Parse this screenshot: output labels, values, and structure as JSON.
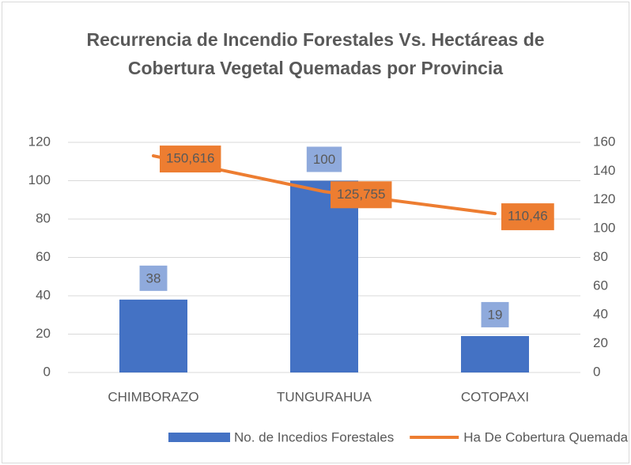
{
  "chart_data": {
    "type": "bar",
    "title": "Recurrencia de Incendio Forestales Vs. Hectáreas de Cobertura Vegetal Quemadas por Provincia",
    "categories": [
      "CHIMBORAZO",
      "TUNGURAHUA",
      "COTOPAXI"
    ],
    "series": [
      {
        "name": "No. de Incedios Forestales",
        "type": "bar",
        "color": "#4472c4",
        "label_color": "#8faadc",
        "values": [
          38,
          100,
          19
        ]
      },
      {
        "name": "Ha De Cobertura Quemada",
        "type": "line",
        "axis": "y2",
        "color": "#ed7d31",
        "label_color": "#ed7d31",
        "values": [
          150.616,
          125.755,
          110.46
        ],
        "value_labels": [
          "150,616",
          "125,755",
          "110,46"
        ]
      }
    ],
    "ylim": [
      0,
      120
    ],
    "yticks": [
      0,
      20,
      40,
      60,
      80,
      100,
      120
    ],
    "y2lim": [
      0,
      160
    ],
    "y2ticks": [
      0,
      20,
      40,
      60,
      80,
      100,
      120,
      140,
      160
    ],
    "grid": true,
    "legend": "bottom"
  }
}
